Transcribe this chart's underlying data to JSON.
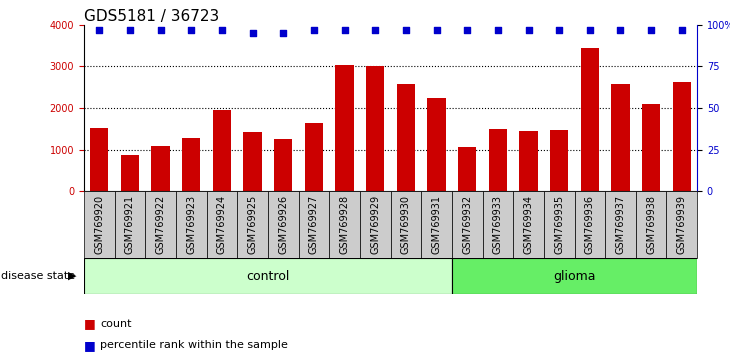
{
  "title": "GDS5181 / 36723",
  "samples": [
    "GSM769920",
    "GSM769921",
    "GSM769922",
    "GSM769923",
    "GSM769924",
    "GSM769925",
    "GSM769926",
    "GSM769927",
    "GSM769928",
    "GSM769929",
    "GSM769930",
    "GSM769931",
    "GSM769932",
    "GSM769933",
    "GSM769934",
    "GSM769935",
    "GSM769936",
    "GSM769937",
    "GSM769938",
    "GSM769939"
  ],
  "counts": [
    1520,
    870,
    1080,
    1270,
    1960,
    1430,
    1250,
    1650,
    3030,
    3020,
    2580,
    2250,
    1060,
    1500,
    1440,
    1480,
    3440,
    2580,
    2100,
    2630
  ],
  "percentile_ranks": [
    97,
    97,
    97,
    97,
    97,
    95,
    95,
    97,
    97,
    97,
    97,
    97,
    97,
    97,
    97,
    97,
    97,
    97,
    97,
    97
  ],
  "bar_color": "#cc0000",
  "dot_color": "#0000cc",
  "ylim_left": [
    0,
    4000
  ],
  "ylim_right": [
    0,
    100
  ],
  "yticks_left": [
    0,
    1000,
    2000,
    3000,
    4000
  ],
  "yticks_right": [
    0,
    25,
    50,
    75,
    100
  ],
  "control_count": 12,
  "glioma_count": 8,
  "control_label": "control",
  "glioma_label": "glioma",
  "disease_state_label": "disease state",
  "legend_count_label": "count",
  "legend_percentile_label": "percentile rank within the sample",
  "control_color": "#ccffcc",
  "glioma_color": "#66ee66",
  "cell_bg_color": "#cccccc",
  "plot_bg_color": "#ffffff",
  "grid_color": "#000000",
  "title_fontsize": 11,
  "tick_fontsize": 7,
  "label_fontsize": 9
}
